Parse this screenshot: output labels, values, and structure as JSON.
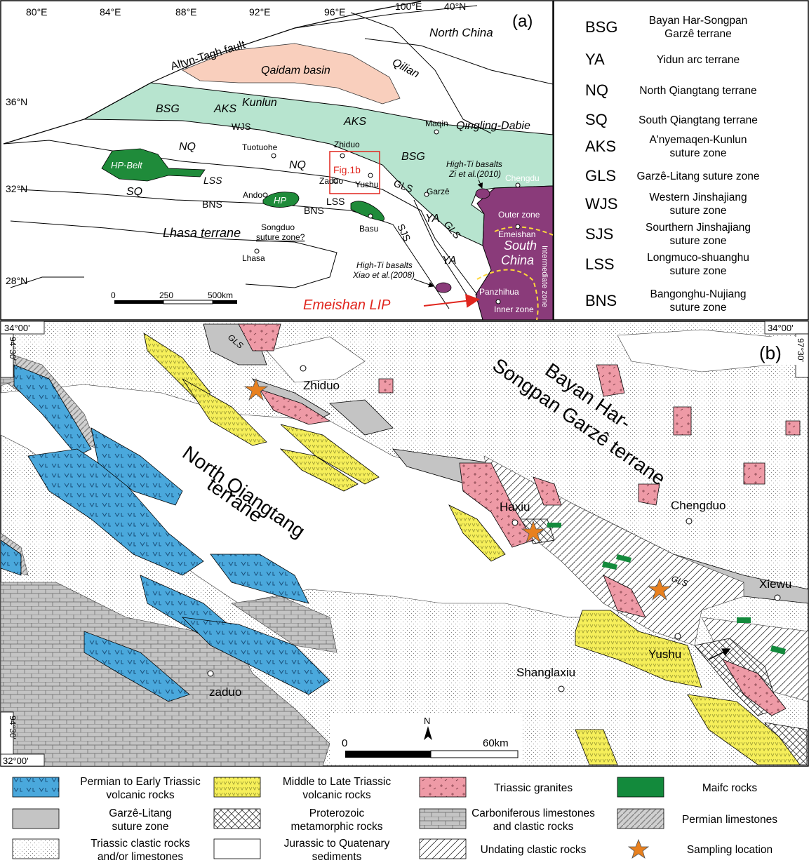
{
  "panel_a": {
    "label": "(a)",
    "lon_labels": [
      "80°E",
      "84°E",
      "88°E",
      "92°E",
      "96°E",
      "100°E"
    ],
    "lat_labels": [
      "40°N",
      "36°N",
      "32°N",
      "28°N"
    ],
    "regions": {
      "north_china": "North China",
      "qilian": "Qilian",
      "altyn": "Altyn-Tagh fault",
      "qaidam": "Qaidam basin",
      "kunlun": "Kunlun",
      "qingling": "Qingling-Dabie",
      "bsg1": "BSG",
      "bsg2": "BSG",
      "aks1": "AKS",
      "aks2": "AKS",
      "wjs": "WJS",
      "nq1": "NQ",
      "nq2": "NQ",
      "sq": "SQ",
      "lss1": "LSS",
      "lss2": "LSS",
      "bns1": "BNS",
      "bns2": "BNS",
      "gls1": "GLS",
      "gls2": "GLS",
      "sjs": "SJS",
      "ya1": "YA",
      "ya2": "YA",
      "hp_belt": "HP-Belt",
      "hp": "HP",
      "lhasa_terrane": "Lhasa terrane",
      "songduo1": "Songduo",
      "songduo2": "suture zone?",
      "south_china1": "South",
      "south_china2": "China",
      "outer_zone": "Outer zone",
      "intermediate_zone": "Intermediate zone",
      "inner_zone": "Inner zone",
      "fig1b": "Fig.1b"
    },
    "places": {
      "maqin": "Maqin",
      "tuotuohe": "Tuotuohe",
      "zhiduo": "Zhiduo",
      "zaduo": "Zaduo",
      "yushu": "Yushu",
      "garze": "Garzê",
      "ando": "Ando",
      "basu": "Basu",
      "lhasa": "Lhasa",
      "chengdu": "Chengdu",
      "emeishan": "Emeishan",
      "panzhihua": "Panzhihua"
    },
    "annotations": {
      "hiti1_a": "High-Ti basalts",
      "hiti1_b": "Zi et al.(2010)",
      "hiti2_a": "High-Ti basalts",
      "hiti2_b": "Xiao et al.(2008)",
      "lip": "Emeishan LIP"
    },
    "scale": {
      "s0": "0",
      "s1": "250",
      "s2": "500km"
    }
  },
  "abbrev_legend": [
    {
      "abbr": "BSG",
      "l1": "Bayan Har-Songpan",
      "l2": "Garzê terrane"
    },
    {
      "abbr": "YA",
      "l1": "Yidun arc terrane",
      "l2": ""
    },
    {
      "abbr": "NQ",
      "l1": "North Qiangtang terrane",
      "l2": ""
    },
    {
      "abbr": "SQ",
      "l1": "South Qiangtang terrane",
      "l2": ""
    },
    {
      "abbr": "AKS",
      "l1": "A'nyemaqen-Kunlun",
      "l2": "suture zone"
    },
    {
      "abbr": "GLS",
      "l1": "Garzê-Litang suture zone",
      "l2": ""
    },
    {
      "abbr": "WJS",
      "l1": "Western Jinshajiang",
      "l2": "suture zone"
    },
    {
      "abbr": "SJS",
      "l1": "Sourthern Jinshajiang",
      "l2": "suture zone"
    },
    {
      "abbr": "LSS",
      "l1": "Longmuco-shuanghu",
      "l2": "suture zone"
    },
    {
      "abbr": "BNS",
      "l1": "Bangonghu-Nujiang",
      "l2": "suture zone"
    }
  ],
  "panel_b": {
    "label": "(b)",
    "corners": {
      "tl": "34°00'",
      "tr": "34°00'",
      "bl": "32°00'",
      "lon_left_top": "94°30'",
      "lon_right_top": "97°30'",
      "lon_left_bottom": "94°30'"
    },
    "terranes": {
      "nq1": "North Qiangtang",
      "nq2": "terrane",
      "bsg1": "Bayan Har-",
      "bsg2": "Songpan Garzê terrane"
    },
    "places": {
      "zhiduo": "Zhiduo",
      "haxiu": "Haxiu",
      "chengduo": "Chengduo",
      "xiewu": "Xiewu",
      "yushu": "Yushu",
      "shanglaxiu": "Shanglaxiu",
      "zaduo": "zaduo",
      "gls1": "GLS",
      "gls2": "GLS"
    },
    "north": "N",
    "scale": {
      "s0": "0",
      "s1": "60km"
    }
  },
  "legend": [
    {
      "id": "volc-permian",
      "l1": "Permian to Early Triassic",
      "l2": "volcanic rocks"
    },
    {
      "id": "volc-mid",
      "l1": "Middle to Late Triassic",
      "l2": "volcanic rocks"
    },
    {
      "id": "granite",
      "l1": "Triassic granites",
      "l2": ""
    },
    {
      "id": "mafic",
      "l1": "Maifc rocks",
      "l2": ""
    },
    {
      "id": "gls",
      "l1": "Garzê-Litang",
      "l2": "suture zone"
    },
    {
      "id": "protero",
      "l1": "Proterozoic",
      "l2": "metamorphic rocks"
    },
    {
      "id": "carb",
      "l1": "Carboniferous limestones",
      "l2": "and clastic rocks"
    },
    {
      "id": "perm-lime",
      "l1": "Permian limestones",
      "l2": ""
    },
    {
      "id": "tri-clastic",
      "l1": "Triassic clastic rocks",
      "l2": "and/or limestones"
    },
    {
      "id": "jurassic",
      "l1": "Jurassic to Quatenary",
      "l2": "sediments"
    },
    {
      "id": "undating",
      "l1": "Undating clastic rocks",
      "l2": ""
    },
    {
      "id": "sample",
      "l1": "Sampling location",
      "l2": ""
    }
  ],
  "colors": {
    "green_zone": "#b7e4cf",
    "qaidam": "#f9cfbd",
    "purple": "#8a3b7a",
    "hp": "#1f8b3a",
    "blue": "#4aa8dc",
    "yellow": "#f6ef5a",
    "pink": "#ee9aa6",
    "gray": "#c4c4c4",
    "mafic": "#138a3c",
    "star": "#e8801e",
    "red": "#e0261e"
  }
}
